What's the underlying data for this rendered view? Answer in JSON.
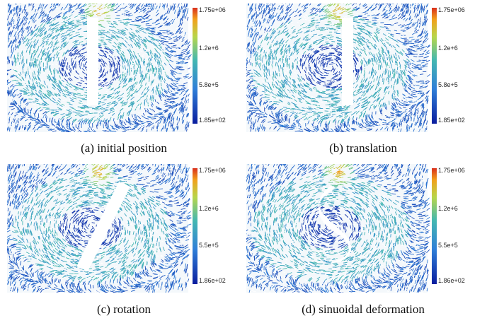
{
  "figure": {
    "panels": [
      {
        "id": "a",
        "caption": "(a) initial position",
        "scene": "initial",
        "colorbar_ticks": [
          "1.75e+06",
          "1.2e+6",
          "5.8e+5",
          "1.85e+02"
        ]
      },
      {
        "id": "b",
        "caption": "(b) translation",
        "scene": "translation",
        "colorbar_ticks": [
          "1.75e+06",
          "1.2e+6",
          "5.8e+5",
          "1.85e+02"
        ]
      },
      {
        "id": "c",
        "caption": "(c) rotation",
        "scene": "rotation",
        "colorbar_ticks": [
          "1.75e+06",
          "1.2e+6",
          "5.5e+5",
          "1.86e+02"
        ]
      },
      {
        "id": "d",
        "caption": "(d) sinuoidal deformation",
        "scene": "sinusoidal",
        "colorbar_ticks": [
          "1.75e+06",
          "1.2e+6",
          "5.5e+5",
          "1.86e+02"
        ]
      }
    ],
    "colors": {
      "low": "#0a1d9e",
      "mid_low": "#2f7fd8",
      "mid": "#44b8b0",
      "mid_high": "#b7d64a",
      "high": "#f2a01a",
      "max": "#d9301c",
      "background": "#ffffff"
    }
  }
}
